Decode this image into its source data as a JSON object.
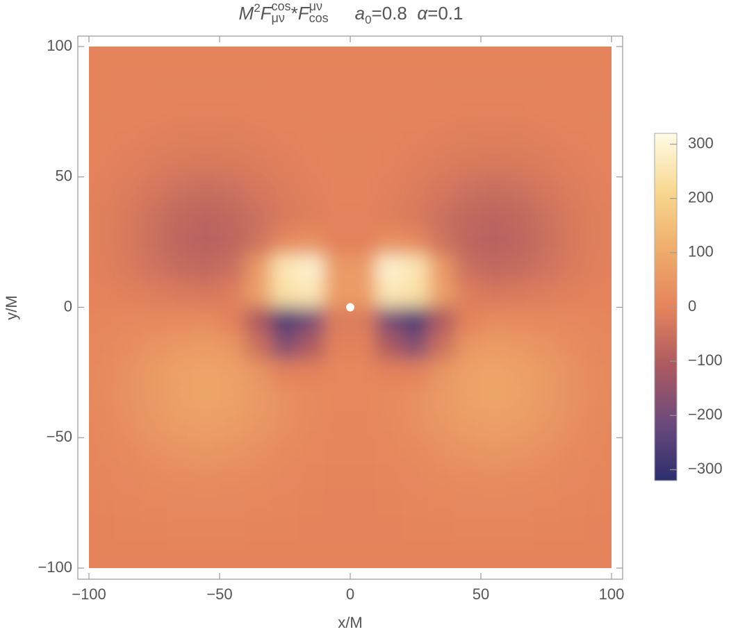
{
  "chart_data": {
    "type": "density",
    "title": {
      "formula": [
        {
          "var": "M"
        },
        {
          "sup": "2"
        },
        {
          "var": "F"
        },
        {
          "sup": "cos",
          "sub": "μν"
        },
        {
          "text": "*"
        },
        {
          "var": "F"
        },
        {
          "sup": "μν",
          "sub": "cos"
        }
      ],
      "params": [
        {
          "var": "a"
        },
        {
          "sub": "0"
        },
        {
          "text": "=0.8  "
        },
        {
          "var": "α"
        },
        {
          "text": "=0.1"
        }
      ]
    },
    "xlabel": "x/M",
    "ylabel": "y/M",
    "xlim": [
      -100,
      100
    ],
    "ylim": [
      -100,
      100
    ],
    "xticks": [
      {
        "value": -100,
        "label": "−100"
      },
      {
        "value": -50,
        "label": "−50"
      },
      0,
      50,
      100
    ],
    "yticks": [
      {
        "value": -100,
        "label": "−100"
      },
      {
        "value": -50,
        "label": "−50"
      },
      0,
      50,
      100
    ],
    "zlim": [
      -320,
      320
    ],
    "zticks": [
      {
        "value": -300,
        "label": "−300"
      },
      {
        "value": -200,
        "label": "−200"
      },
      {
        "value": -100,
        "label": "−100"
      },
      0,
      100,
      200,
      300
    ],
    "colorscale": [
      "#2b2f6e",
      "#6d4a7c",
      "#ad5a60",
      "#e5845c",
      "#efad6c",
      "#f8d890",
      "#fffbe6"
    ],
    "x": [
      -95,
      -85,
      -75,
      -65,
      -55,
      -45,
      -35,
      -25,
      -15,
      -5,
      5,
      15,
      25,
      35,
      45,
      55,
      65,
      75,
      85,
      95
    ],
    "y": [
      95,
      85,
      75,
      65,
      55,
      45,
      35,
      25,
      15,
      5,
      -5,
      -15,
      -25,
      -35,
      -45,
      -55,
      -65,
      -75,
      -85,
      -95
    ],
    "z": [
      [
        0,
        0,
        0,
        0,
        0,
        0,
        0,
        0,
        0,
        0,
        0,
        0,
        0,
        0,
        0,
        0,
        0,
        0,
        0,
        0
      ],
      [
        0,
        0,
        -1,
        -1,
        -1,
        -1,
        -1,
        0,
        0,
        0,
        0,
        0,
        0,
        -1,
        -1,
        -1,
        -1,
        -1,
        0,
        0
      ],
      [
        -1,
        -1,
        -2,
        -3,
        -4,
        -3,
        -2,
        -1,
        -1,
        0,
        0,
        -1,
        -1,
        -2,
        -3,
        -4,
        -3,
        -2,
        -1,
        -1
      ],
      [
        -2,
        -4,
        -7,
        -11,
        -12,
        -11,
        -7,
        -4,
        -2,
        -1,
        -1,
        -2,
        -4,
        -7,
        -11,
        -12,
        -11,
        -7,
        -4,
        -2
      ],
      [
        -4,
        -9,
        -18,
        -26,
        -29,
        -26,
        -18,
        -9,
        -4,
        -1,
        -1,
        -4,
        -9,
        -18,
        -26,
        -29,
        -26,
        -18,
        -9,
        -4
      ],
      [
        -7,
        -18,
        -33,
        -48,
        -55,
        -48,
        -33,
        -18,
        -7,
        -2,
        -2,
        -7,
        -18,
        -33,
        -48,
        -55,
        -48,
        -33,
        -18,
        -7
      ],
      [
        -11,
        -26,
        -48,
        -69,
        -78,
        -69,
        -48,
        -26,
        -11,
        -4,
        -4,
        -11,
        -26,
        -48,
        -69,
        -78,
        -69,
        -48,
        -26,
        -11
      ],
      [
        -11,
        -27,
        -52,
        -75,
        -86,
        -75,
        -42,
        13,
        29,
        -4,
        -4,
        29,
        13,
        -42,
        -75,
        -86,
        -75,
        -52,
        -27,
        -11
      ],
      [
        -9,
        -22,
        -42,
        -60,
        -68,
        -50,
        58,
        258,
        291,
        57,
        57,
        291,
        258,
        58,
        -50,
        -68,
        -60,
        -42,
        -22,
        -9
      ],
      [
        -2,
        -8,
        -16,
        -25,
        -30,
        -15,
        74,
        242,
        258,
        60,
        60,
        258,
        242,
        74,
        -15,
        -30,
        -25,
        -16,
        -8,
        -2
      ],
      [
        5,
        10,
        13,
        16,
        18,
        -4,
        -107,
        -270,
        -195,
        -17,
        -17,
        -195,
        -270,
        -107,
        -4,
        18,
        16,
        13,
        10,
        5
      ],
      [
        11,
        24,
        40,
        53,
        59,
        43,
        -50,
        -176,
        -109,
        -5,
        -5,
        -109,
        -176,
        -50,
        43,
        59,
        53,
        40,
        24,
        11
      ],
      [
        16,
        34,
        56,
        76,
        84,
        76,
        41,
        -6,
        -4,
        7,
        7,
        -4,
        -6,
        41,
        76,
        84,
        76,
        56,
        34,
        16
      ],
      [
        17,
        34,
        57,
        78,
        87,
        78,
        57,
        34,
        17,
        7,
        7,
        17,
        34,
        57,
        78,
        87,
        78,
        57,
        34,
        17
      ],
      [
        13,
        28,
        47,
        64,
        71,
        64,
        47,
        28,
        13,
        6,
        6,
        13,
        28,
        47,
        64,
        71,
        64,
        47,
        28,
        13
      ],
      [
        9,
        19,
        31,
        42,
        47,
        42,
        31,
        19,
        9,
        4,
        4,
        9,
        19,
        31,
        42,
        47,
        42,
        31,
        19,
        9
      ],
      [
        5,
        10,
        17,
        23,
        25,
        23,
        17,
        10,
        5,
        2,
        2,
        5,
        10,
        17,
        23,
        25,
        23,
        17,
        10,
        5
      ],
      [
        2,
        4,
        7,
        10,
        11,
        10,
        7,
        4,
        2,
        1,
        1,
        2,
        4,
        7,
        10,
        11,
        10,
        7,
        4,
        2
      ],
      [
        1,
        2,
        3,
        4,
        4,
        4,
        3,
        2,
        1,
        0,
        0,
        1,
        2,
        3,
        4,
        4,
        4,
        3,
        2,
        1
      ],
      [
        0,
        0,
        1,
        1,
        1,
        1,
        1,
        0,
        0,
        0,
        0,
        0,
        0,
        1,
        1,
        1,
        1,
        1,
        0,
        0
      ]
    ],
    "points": {
      "x": [
        0
      ],
      "y": [
        0
      ],
      "color": "#ffffff"
    }
  }
}
